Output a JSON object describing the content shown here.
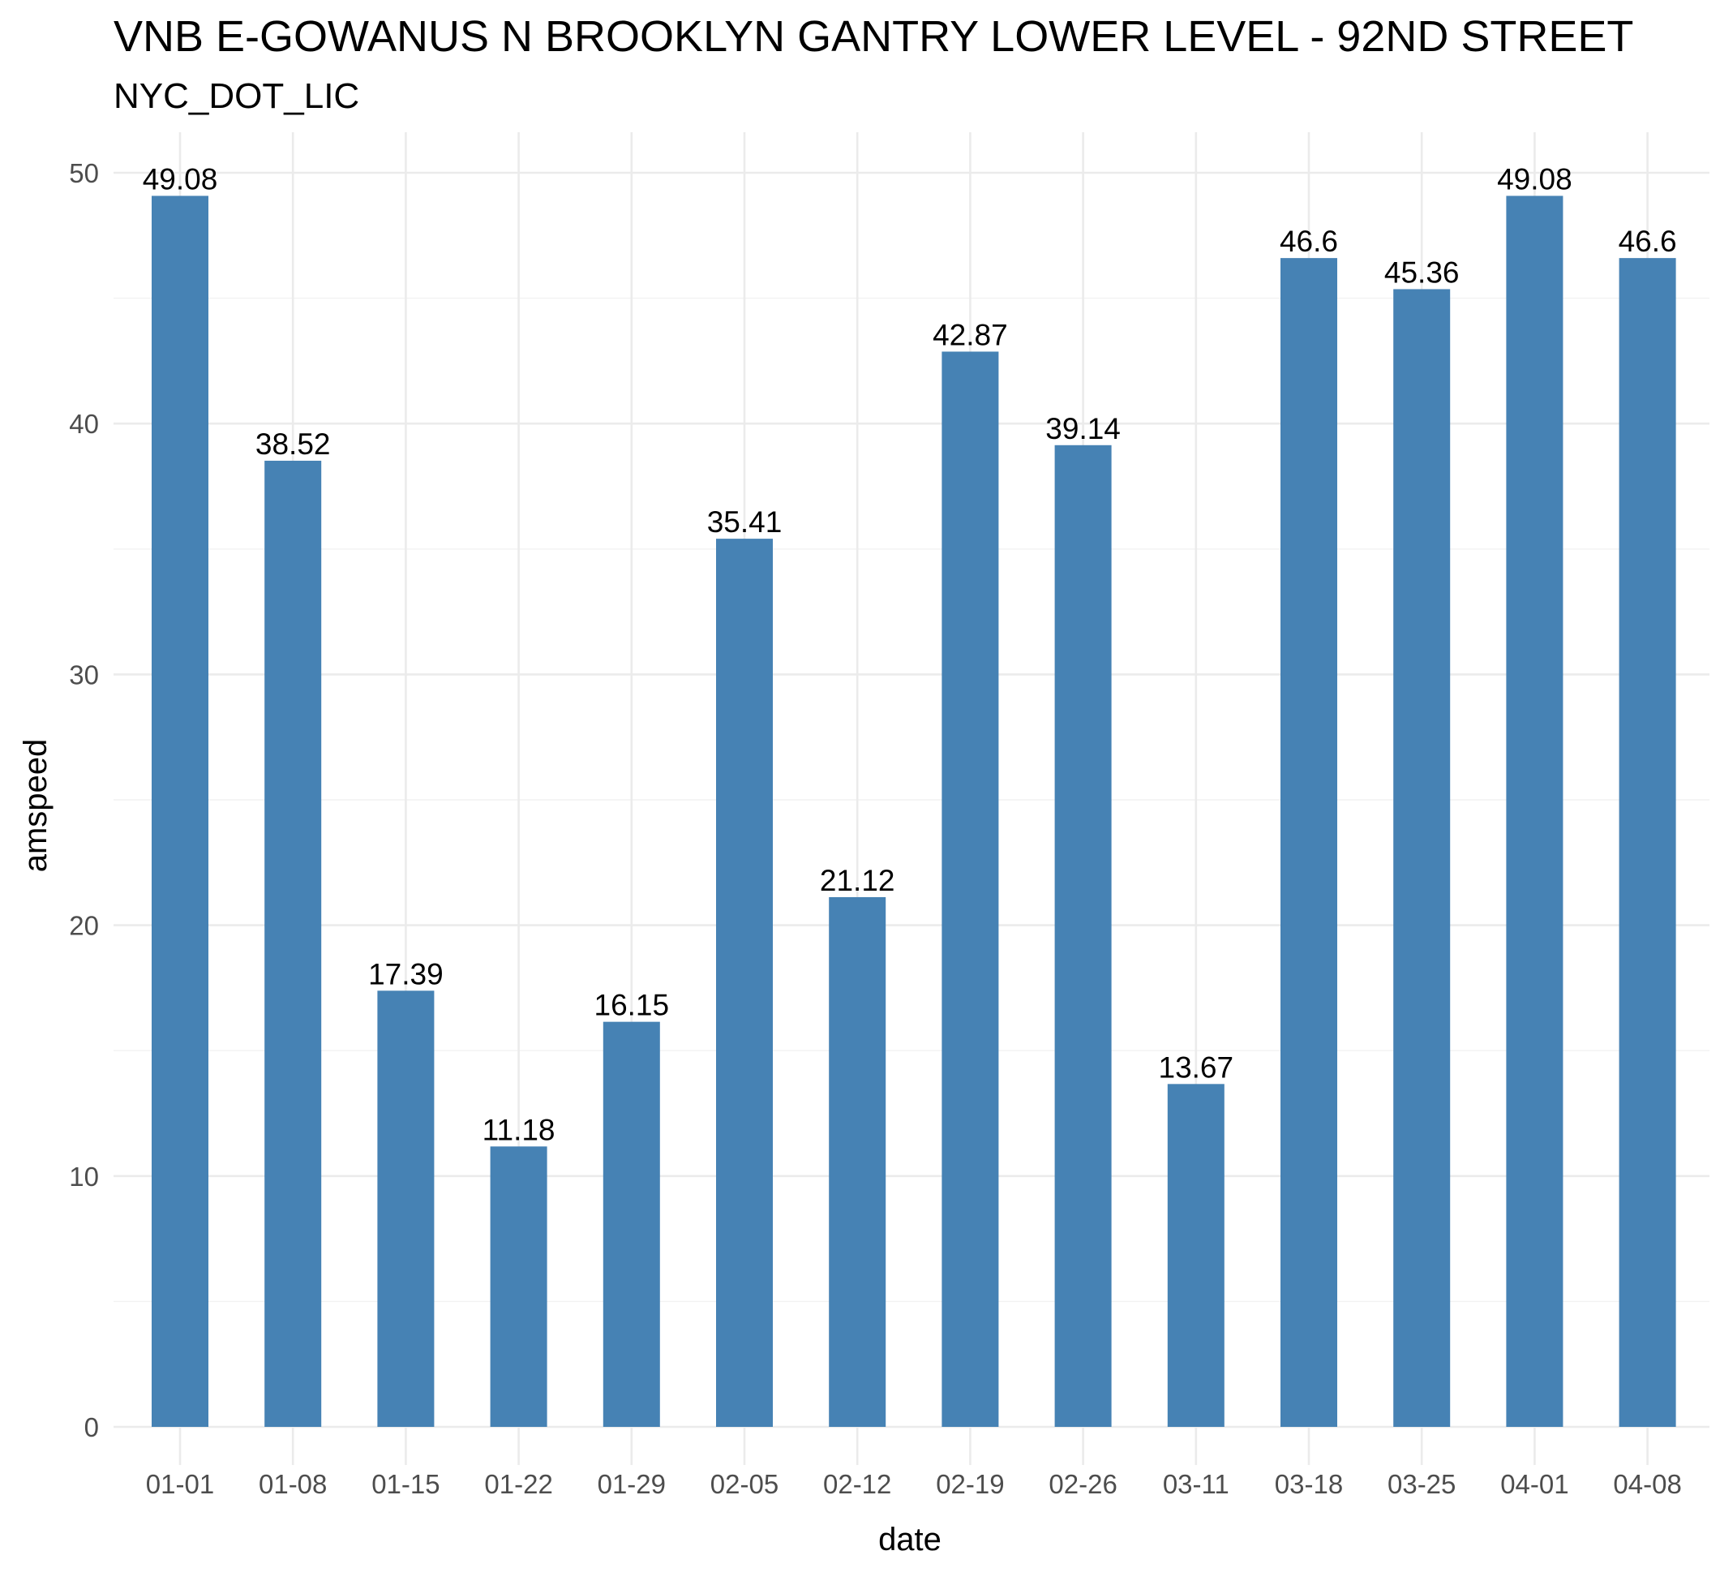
{
  "chart_data": {
    "type": "bar",
    "title": "VNB E-GOWANUS N BROOKLYN GANTRY LOWER LEVEL - 92ND STREET",
    "subtitle": "NYC_DOT_LIC",
    "xlabel": "date",
    "ylabel": "amspeed",
    "categories": [
      "01-01",
      "01-08",
      "01-15",
      "01-22",
      "01-29",
      "02-05",
      "02-12",
      "02-19",
      "02-26",
      "03-11",
      "03-18",
      "03-25",
      "04-01",
      "04-08"
    ],
    "values": [
      49.08,
      38.52,
      17.39,
      11.18,
      16.15,
      35.41,
      21.12,
      42.87,
      39.14,
      13.67,
      46.6,
      45.36,
      49.08,
      46.6
    ],
    "data_labels": [
      "49.08",
      "38.52",
      "17.39",
      "11.18",
      "16.15",
      "35.41",
      "21.12",
      "42.87",
      "39.14",
      "13.67",
      "46.6",
      "45.36",
      "49.08",
      "46.6"
    ],
    "y_ticks": [
      0,
      10,
      20,
      30,
      40,
      50
    ],
    "ylim": [
      0,
      51.6
    ],
    "grid": true,
    "legend": "none",
    "bar_color": "#4682b4"
  }
}
